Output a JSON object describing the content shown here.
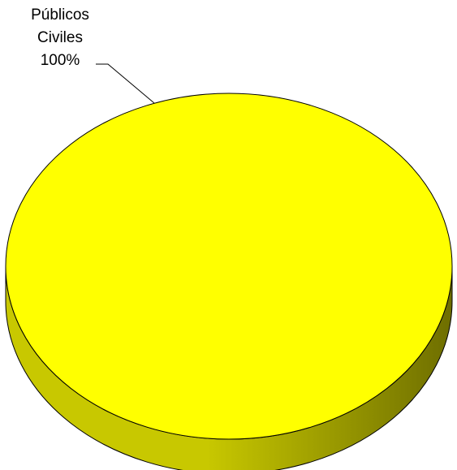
{
  "chart_data": {
    "type": "pie",
    "style": "3d",
    "title": "",
    "categories": [
      "Públicos Civiles"
    ],
    "values": [
      100
    ],
    "slices": [
      {
        "label_lines": [
          "Públicos",
          "Civiles"
        ],
        "percent_label": "100%",
        "value": 100,
        "color": "#FFFF00"
      }
    ],
    "legend": "none",
    "leader_line": true
  },
  "colors": {
    "slice_top": "#FFFF00",
    "slice_side_light": "#C8C800",
    "slice_side_dark": "#6E6E00",
    "outline": "#000000",
    "background": "#FFFFFF"
  }
}
